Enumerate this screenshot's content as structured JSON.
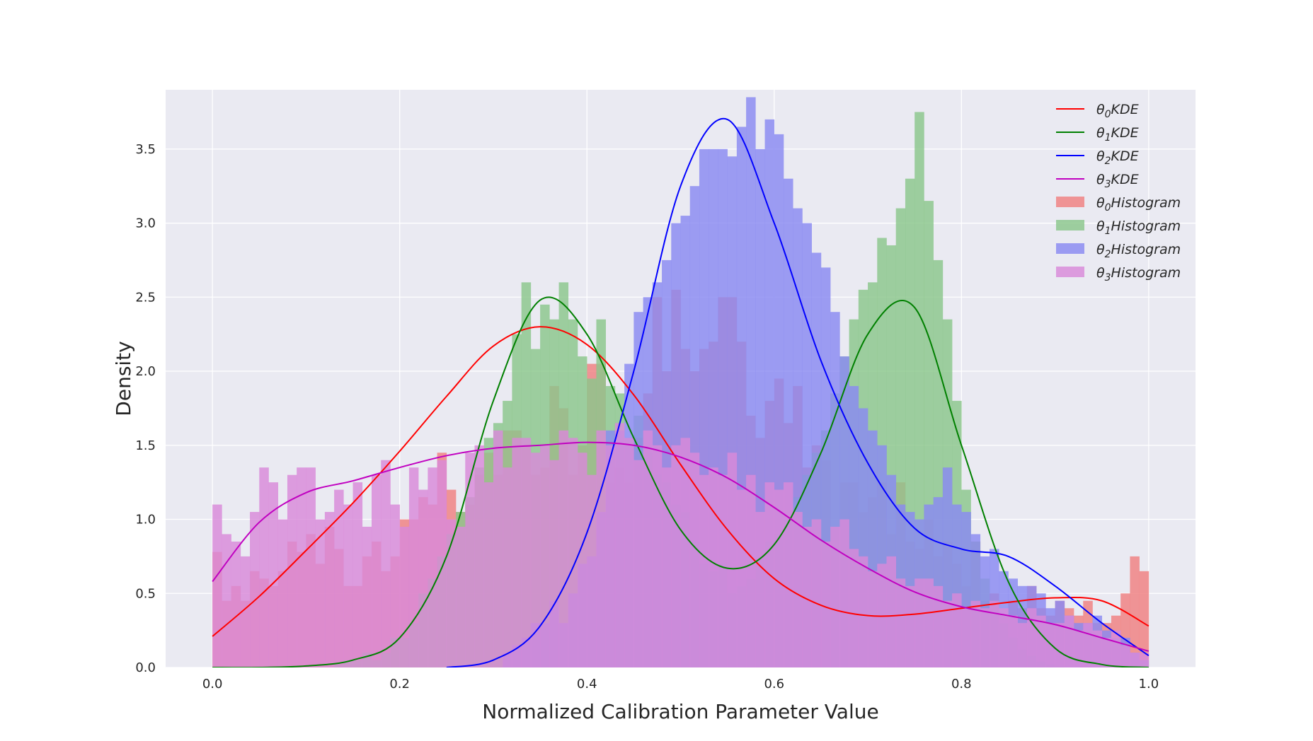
{
  "chart_data": {
    "type": "histogram+kde",
    "xlabel": "Normalized Calibration Parameter Value",
    "ylabel": "Density",
    "xlim": [
      -0.05,
      1.05
    ],
    "ylim": [
      0,
      3.9
    ],
    "x_ticks": [
      0.0,
      0.2,
      0.4,
      0.6,
      0.8,
      1.0
    ],
    "x_tick_labels": [
      "0.0",
      "0.2",
      "0.4",
      "0.6",
      "0.8",
      "1.0"
    ],
    "y_ticks": [
      0.0,
      0.5,
      1.0,
      1.5,
      2.0,
      2.5,
      3.0,
      3.5
    ],
    "y_tick_labels": [
      "0.0",
      "0.5",
      "1.0",
      "1.5",
      "2.0",
      "2.5",
      "3.0",
      "3.5"
    ],
    "grid": true,
    "legend_position": "top-right",
    "background": "#eaeaf2",
    "histogram_bins": {
      "start": 0.0,
      "bin_width": 0.01,
      "count": 100
    },
    "series": [
      {
        "name": "θ0KDE",
        "name_base": "θ",
        "name_sub": "0",
        "name_suffix": "KDE",
        "kind": "kde",
        "color": "#ff0000",
        "x": [
          0.0,
          0.05,
          0.1,
          0.15,
          0.2,
          0.25,
          0.3,
          0.35,
          0.4,
          0.45,
          0.5,
          0.55,
          0.6,
          0.65,
          0.7,
          0.75,
          0.8,
          0.85,
          0.9,
          0.95,
          1.0
        ],
        "y": [
          0.21,
          0.48,
          0.79,
          1.11,
          1.46,
          1.83,
          2.17,
          2.3,
          2.18,
          1.84,
          1.37,
          0.93,
          0.6,
          0.42,
          0.35,
          0.36,
          0.4,
          0.44,
          0.47,
          0.45,
          0.28
        ]
      },
      {
        "name": "θ1KDE",
        "name_base": "θ",
        "name_sub": "1",
        "name_suffix": "KDE",
        "kind": "kde",
        "color": "#008000",
        "x": [
          0.0,
          0.05,
          0.1,
          0.15,
          0.2,
          0.25,
          0.3,
          0.35,
          0.4,
          0.45,
          0.5,
          0.55,
          0.6,
          0.65,
          0.7,
          0.75,
          0.8,
          0.85,
          0.9,
          0.95,
          1.0
        ],
        "y": [
          0.0,
          0.0,
          0.01,
          0.05,
          0.2,
          0.75,
          1.8,
          2.48,
          2.25,
          1.55,
          0.93,
          0.67,
          0.83,
          1.45,
          2.25,
          2.43,
          1.5,
          0.58,
          0.13,
          0.02,
          0.0
        ]
      },
      {
        "name": "θ2KDE",
        "name_base": "θ",
        "name_sub": "2",
        "name_suffix": "KDE",
        "kind": "kde",
        "color": "#0000ff",
        "x": [
          0.25,
          0.3,
          0.35,
          0.4,
          0.45,
          0.5,
          0.55,
          0.6,
          0.65,
          0.7,
          0.75,
          0.8,
          0.85,
          0.9,
          0.95,
          1.0
        ],
        "y": [
          0.0,
          0.05,
          0.28,
          0.91,
          2.0,
          3.25,
          3.7,
          3.0,
          2.07,
          1.38,
          0.94,
          0.8,
          0.75,
          0.55,
          0.3,
          0.08
        ]
      },
      {
        "name": "θ3KDE",
        "name_base": "θ",
        "name_sub": "3",
        "name_suffix": "KDE",
        "kind": "kde",
        "color": "#c000c0",
        "x": [
          0.0,
          0.05,
          0.1,
          0.15,
          0.2,
          0.25,
          0.3,
          0.35,
          0.4,
          0.45,
          0.5,
          0.55,
          0.6,
          0.65,
          0.7,
          0.75,
          0.8,
          0.85,
          0.9,
          0.95,
          1.0
        ],
        "y": [
          0.58,
          0.98,
          1.18,
          1.26,
          1.35,
          1.43,
          1.48,
          1.5,
          1.52,
          1.5,
          1.42,
          1.28,
          1.08,
          0.86,
          0.67,
          0.51,
          0.41,
          0.35,
          0.29,
          0.2,
          0.11
        ]
      },
      {
        "name": "θ0Histogram",
        "name_base": "θ",
        "name_sub": "0",
        "name_suffix": "Histogram",
        "kind": "histogram",
        "color": "#f08080",
        "values": [
          0.78,
          0.45,
          0.55,
          0.45,
          0.65,
          0.6,
          0.55,
          0.65,
          0.85,
          0.78,
          0.9,
          0.7,
          0.95,
          0.8,
          0.55,
          0.55,
          0.75,
          0.85,
          0.65,
          0.75,
          1.0,
          1.0,
          1.15,
          1.1,
          1.45,
          1.2,
          1.05,
          1.1,
          1.3,
          1.45,
          1.3,
          1.6,
          1.6,
          1.5,
          1.3,
          1.35,
          1.9,
          1.75,
          1.3,
          1.5,
          2.05,
          2.05,
          1.25,
          1.35,
          1.25,
          1.55,
          1.85,
          2.5,
          2.0,
          2.55,
          2.15,
          2.0,
          2.15,
          2.2,
          2.5,
          2.5,
          2.2,
          1.7,
          1.55,
          1.8,
          1.95,
          1.65,
          1.9,
          1.35,
          1.5,
          1.4,
          0.95,
          1.25,
          1.25,
          1.05,
          1.15,
          1.25,
          0.9,
          1.25,
          0.85,
          0.8,
          1.0,
          0.75,
          0.85,
          0.7,
          0.55,
          0.85,
          0.45,
          0.5,
          0.35,
          0.45,
          0.4,
          0.55,
          0.4,
          0.35,
          0.45,
          0.4,
          0.35,
          0.45,
          0.3,
          0.3,
          0.35,
          0.5,
          0.75,
          0.65
        ]
      },
      {
        "name": "θ1Histogram",
        "name_base": "θ",
        "name_sub": "1",
        "name_suffix": "Histogram",
        "kind": "histogram",
        "color": "#8bc78b",
        "values": [
          0.0,
          0.0,
          0.0,
          0.0,
          0.0,
          0.0,
          0.0,
          0.0,
          0.0,
          0.0,
          0.0,
          0.0,
          0.0,
          0.02,
          0.05,
          0.05,
          0.1,
          0.05,
          0.1,
          0.2,
          0.2,
          0.3,
          0.5,
          0.6,
          0.75,
          0.9,
          1.05,
          1.15,
          1.35,
          1.55,
          1.65,
          1.8,
          2.25,
          2.6,
          2.15,
          2.45,
          2.35,
          2.6,
          2.35,
          2.1,
          1.95,
          2.35,
          1.9,
          1.85,
          1.55,
          1.7,
          1.45,
          1.3,
          1.25,
          1.1,
          1.05,
          0.85,
          0.7,
          0.65,
          0.7,
          0.5,
          0.55,
          0.6,
          0.75,
          0.85,
          0.9,
          1.0,
          1.15,
          1.3,
          1.45,
          1.6,
          1.85,
          2.1,
          2.35,
          2.55,
          2.6,
          2.9,
          2.85,
          3.1,
          3.3,
          3.75,
          3.15,
          2.75,
          2.35,
          1.8,
          1.2,
          0.85,
          0.6,
          0.45,
          0.3,
          0.2,
          0.12,
          0.08,
          0.04,
          0.02,
          0.01,
          0.0,
          0.0,
          0.0,
          0.0,
          0.0,
          0.0,
          0.0,
          0.0,
          0.0
        ]
      },
      {
        "name": "θ2Histogram",
        "name_base": "θ",
        "name_sub": "2",
        "name_suffix": "Histogram",
        "kind": "histogram",
        "color": "#8a8af2",
        "values": [
          0.0,
          0.0,
          0.0,
          0.0,
          0.0,
          0.0,
          0.0,
          0.0,
          0.0,
          0.0,
          0.0,
          0.0,
          0.0,
          0.0,
          0.0,
          0.0,
          0.0,
          0.0,
          0.0,
          0.0,
          0.0,
          0.0,
          0.0,
          0.0,
          0.0,
          0.0,
          0.0,
          0.0,
          0.0,
          0.0,
          0.0,
          0.1,
          0.15,
          0.2,
          0.3,
          0.3,
          0.45,
          0.3,
          0.5,
          0.7,
          0.75,
          1.05,
          1.6,
          1.6,
          2.05,
          2.4,
          2.5,
          2.6,
          2.75,
          3.0,
          3.05,
          3.25,
          3.5,
          3.5,
          3.5,
          3.45,
          3.65,
          3.85,
          3.5,
          3.7,
          3.6,
          3.3,
          3.1,
          3.0,
          2.8,
          2.7,
          2.4,
          2.1,
          1.9,
          1.75,
          1.6,
          1.5,
          1.3,
          1.1,
          1.05,
          1.0,
          1.1,
          1.15,
          1.35,
          1.1,
          1.05,
          0.9,
          0.75,
          0.8,
          0.65,
          0.6,
          0.55,
          0.55,
          0.5,
          0.4,
          0.45,
          0.35,
          0.3,
          0.3,
          0.35,
          0.25,
          0.2,
          0.2,
          0.1,
          0.05
        ]
      },
      {
        "name": "θ3Histogram",
        "name_base": "θ",
        "name_sub": "3",
        "name_suffix": "Histogram",
        "kind": "histogram",
        "color": "#d98ad9",
        "values": [
          1.1,
          0.9,
          0.85,
          0.75,
          1.05,
          1.35,
          1.25,
          1.0,
          1.3,
          1.35,
          1.35,
          1.0,
          1.05,
          1.2,
          1.1,
          1.25,
          0.95,
          1.3,
          1.4,
          1.1,
          0.95,
          1.35,
          1.2,
          1.35,
          1.4,
          1.0,
          0.95,
          1.45,
          1.5,
          1.25,
          1.6,
          1.35,
          1.55,
          1.55,
          1.45,
          1.5,
          1.4,
          1.6,
          1.55,
          1.45,
          1.3,
          1.6,
          1.5,
          1.65,
          1.55,
          1.4,
          1.6,
          1.5,
          1.35,
          1.5,
          1.55,
          1.45,
          1.3,
          1.35,
          1.3,
          1.45,
          1.2,
          1.3,
          1.05,
          1.25,
          1.2,
          1.25,
          1.05,
          0.95,
          1.0,
          0.85,
          0.95,
          1.0,
          0.8,
          0.75,
          0.65,
          0.7,
          0.75,
          0.6,
          0.55,
          0.6,
          0.6,
          0.55,
          0.45,
          0.5,
          0.4,
          0.45,
          0.4,
          0.45,
          0.4,
          0.35,
          0.3,
          0.4,
          0.35,
          0.3,
          0.3,
          0.35,
          0.25,
          0.3,
          0.25,
          0.2,
          0.25,
          0.15,
          0.1,
          0.1
        ]
      }
    ]
  }
}
